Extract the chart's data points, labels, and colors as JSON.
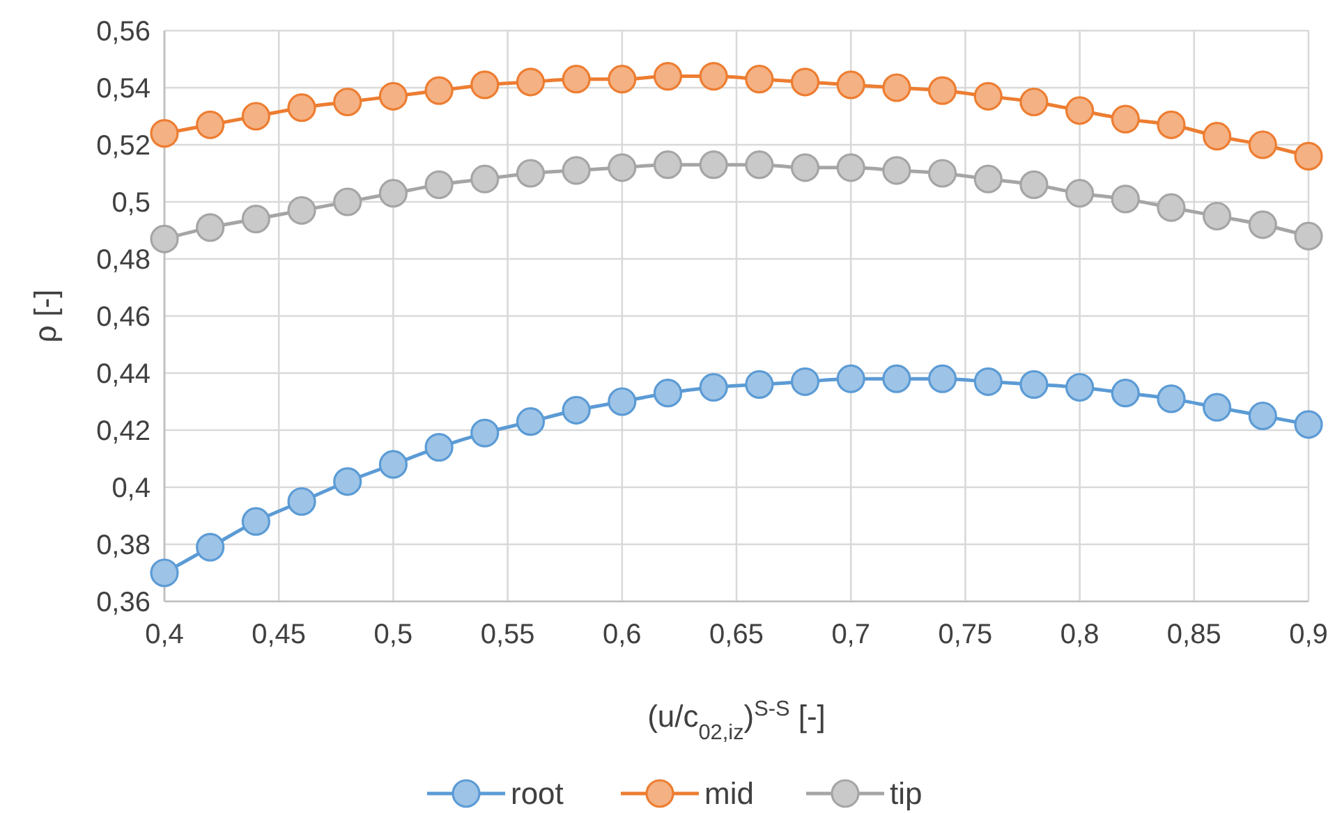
{
  "chart_data": {
    "type": "line",
    "xlabel": "(u/c$_{02,iz}$)$^{S-S}$ [-]",
    "ylabel": "ρ [-]",
    "x": [
      0.4,
      0.42,
      0.44,
      0.46,
      0.48,
      0.5,
      0.52,
      0.54,
      0.56,
      0.58,
      0.6,
      0.62,
      0.64,
      0.66,
      0.68,
      0.7,
      0.72,
      0.74,
      0.76,
      0.78,
      0.8,
      0.82,
      0.84,
      0.86,
      0.88,
      0.9
    ],
    "series": [
      {
        "name": "root",
        "color": "#5b9bd5",
        "values": [
          0.37,
          0.379,
          0.388,
          0.395,
          0.402,
          0.408,
          0.414,
          0.419,
          0.423,
          0.427,
          0.43,
          0.433,
          0.435,
          0.436,
          0.437,
          0.438,
          0.438,
          0.438,
          0.437,
          0.436,
          0.435,
          0.433,
          0.431,
          0.428,
          0.425,
          0.422
        ]
      },
      {
        "name": "mid",
        "color": "#ed7d31",
        "values": [
          0.524,
          0.527,
          0.53,
          0.533,
          0.535,
          0.537,
          0.539,
          0.541,
          0.542,
          0.543,
          0.543,
          0.544,
          0.544,
          0.543,
          0.542,
          0.541,
          0.54,
          0.539,
          0.537,
          0.535,
          0.532,
          0.529,
          0.527,
          0.523,
          0.52,
          0.516
        ]
      },
      {
        "name": "tip",
        "color": "#a5a5a5",
        "values": [
          0.487,
          0.491,
          0.494,
          0.497,
          0.5,
          0.503,
          0.506,
          0.508,
          0.51,
          0.511,
          0.512,
          0.513,
          0.513,
          0.513,
          0.512,
          0.512,
          0.511,
          0.51,
          0.508,
          0.506,
          0.503,
          0.501,
          0.498,
          0.495,
          0.492,
          0.488
        ]
      }
    ],
    "xlim": [
      0.4,
      0.9
    ],
    "xticks": [
      {
        "value": 0.4,
        "label": "0,4"
      },
      {
        "value": 0.45,
        "label": "0,45"
      },
      {
        "value": 0.5,
        "label": "0,5"
      },
      {
        "value": 0.55,
        "label": "0,55"
      },
      {
        "value": 0.6,
        "label": "0,6"
      },
      {
        "value": 0.65,
        "label": "0,65"
      },
      {
        "value": 0.7,
        "label": "0,7"
      },
      {
        "value": 0.75,
        "label": "0,75"
      },
      {
        "value": 0.8,
        "label": "0,8"
      },
      {
        "value": 0.85,
        "label": "0,85"
      },
      {
        "value": 0.9,
        "label": "0,9"
      }
    ],
    "ylim": [
      0.36,
      0.56
    ],
    "yticks": [
      {
        "value": 0.36,
        "label": "0,36"
      },
      {
        "value": 0.38,
        "label": "0,38"
      },
      {
        "value": 0.4,
        "label": "0,4"
      },
      {
        "value": 0.42,
        "label": "0,42"
      },
      {
        "value": 0.44,
        "label": "0,44"
      },
      {
        "value": 0.46,
        "label": "0,46"
      },
      {
        "value": 0.48,
        "label": "0,48"
      },
      {
        "value": 0.5,
        "label": "0,5"
      },
      {
        "value": 0.52,
        "label": "0,52"
      },
      {
        "value": 0.54,
        "label": "0,54"
      },
      {
        "value": 0.56,
        "label": "0,56"
      }
    ],
    "grid": true,
    "legend": "bottom",
    "marker": "circle",
    "line_style": "solid"
  }
}
